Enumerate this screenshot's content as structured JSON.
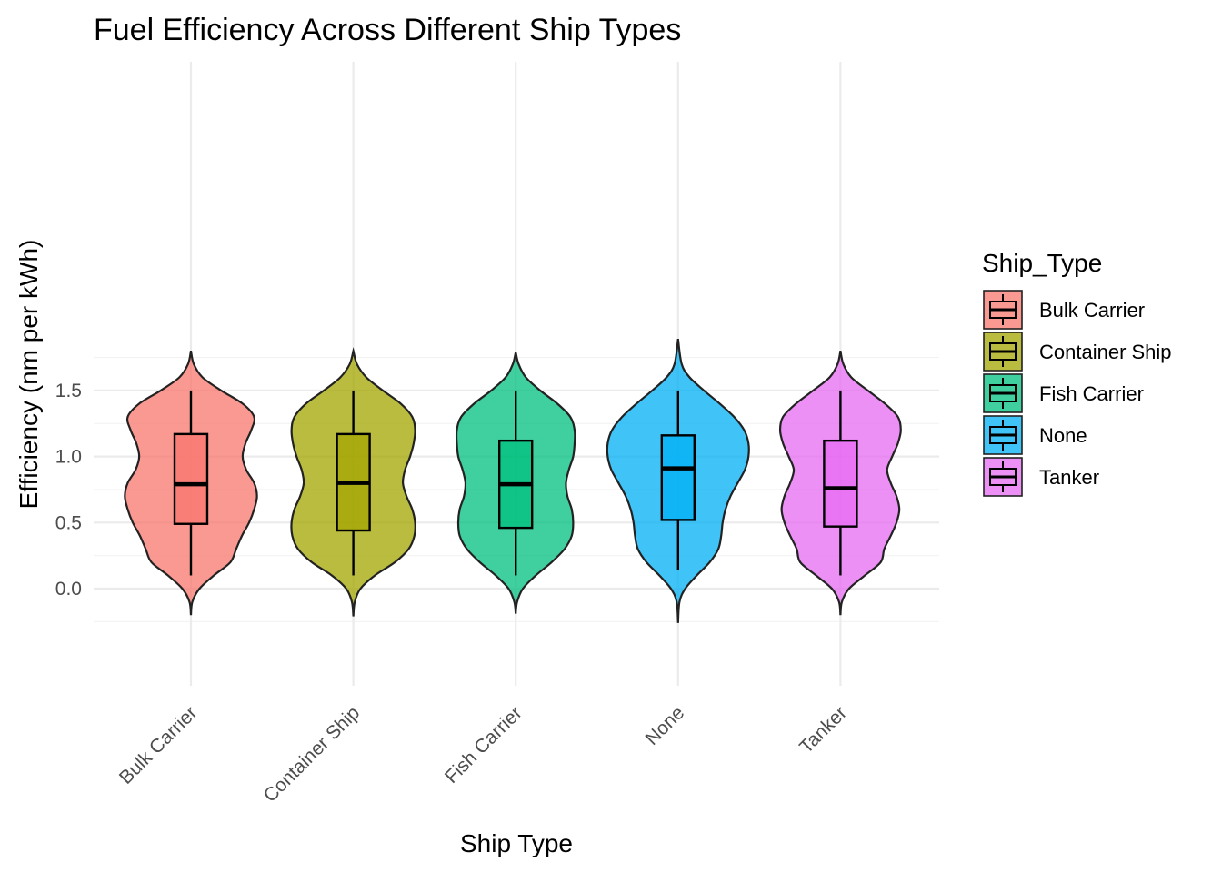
{
  "chart_data": {
    "type": "violin",
    "title": "Fuel Efficiency Across Different Ship Types",
    "xlabel": "Ship Type",
    "ylabel": "Efficiency (nm per kWh)",
    "ylim": [
      -0.25,
      1.9
    ],
    "y_ticks": [
      0.0,
      0.5,
      1.0,
      1.5
    ],
    "y_tick_labels": [
      "0.0",
      "0.5",
      "1.0",
      "1.5"
    ],
    "grid": true,
    "legend": {
      "title": "Ship_Type",
      "placement": "right"
    },
    "categories": [
      "Bulk Carrier",
      "Container Ship",
      "Fish Carrier",
      "None",
      "Tanker"
    ],
    "series": [
      {
        "name": "Bulk Carrier",
        "color": "#F8766D",
        "box": {
          "min": 0.1,
          "q1": 0.49,
          "median": 0.79,
          "q3": 1.17,
          "max": 1.5
        },
        "violin_range": [
          -0.2,
          1.8
        ],
        "density_y": [
          -0.2,
          -0.1,
          0.0,
          0.1,
          0.2,
          0.3,
          0.4,
          0.5,
          0.6,
          0.7,
          0.8,
          0.9,
          1.0,
          1.1,
          1.2,
          1.3,
          1.4,
          1.5,
          1.6,
          1.7,
          1.8
        ],
        "density_w": [
          0.0,
          0.02,
          0.12,
          0.32,
          0.55,
          0.63,
          0.71,
          0.81,
          0.88,
          0.92,
          0.88,
          0.77,
          0.72,
          0.76,
          0.84,
          0.88,
          0.72,
          0.42,
          0.16,
          0.04,
          0.0
        ]
      },
      {
        "name": "Container Ship",
        "color": "#A3A500",
        "box": {
          "min": 0.1,
          "q1": 0.44,
          "median": 0.8,
          "q3": 1.17,
          "max": 1.5
        },
        "violin_range": [
          -0.21,
          1.8
        ],
        "density_y": [
          -0.21,
          -0.1,
          0.0,
          0.1,
          0.2,
          0.3,
          0.4,
          0.5,
          0.6,
          0.7,
          0.8,
          0.9,
          1.0,
          1.1,
          1.2,
          1.3,
          1.4,
          1.5,
          1.6,
          1.7,
          1.8
        ],
        "density_w": [
          0.0,
          0.02,
          0.1,
          0.3,
          0.58,
          0.77,
          0.85,
          0.86,
          0.82,
          0.74,
          0.69,
          0.72,
          0.79,
          0.84,
          0.86,
          0.82,
          0.66,
          0.41,
          0.18,
          0.05,
          0.0
        ]
      },
      {
        "name": "Fish Carrier",
        "color": "#00BF7D",
        "box": {
          "min": 0.1,
          "q1": 0.46,
          "median": 0.79,
          "q3": 1.12,
          "max": 1.5
        },
        "violin_range": [
          -0.19,
          1.79
        ],
        "density_y": [
          -0.19,
          -0.1,
          0.0,
          0.1,
          0.2,
          0.3,
          0.4,
          0.5,
          0.6,
          0.7,
          0.8,
          0.9,
          1.0,
          1.1,
          1.2,
          1.3,
          1.4,
          1.5,
          1.6,
          1.7,
          1.79
        ],
        "density_w": [
          0.0,
          0.02,
          0.1,
          0.28,
          0.5,
          0.68,
          0.78,
          0.8,
          0.78,
          0.72,
          0.7,
          0.74,
          0.8,
          0.82,
          0.82,
          0.76,
          0.58,
          0.34,
          0.14,
          0.04,
          0.0
        ]
      },
      {
        "name": "None",
        "color": "#00B0F6",
        "box": {
          "min": 0.14,
          "q1": 0.52,
          "median": 0.91,
          "q3": 1.16,
          "max": 1.5
        },
        "violin_range": [
          -0.26,
          1.89
        ],
        "density_y": [
          -0.26,
          -0.1,
          0.0,
          0.1,
          0.2,
          0.3,
          0.4,
          0.5,
          0.6,
          0.7,
          0.8,
          0.9,
          1.0,
          1.1,
          1.2,
          1.3,
          1.4,
          1.5,
          1.6,
          1.7,
          1.89
        ],
        "density_w": [
          0.0,
          0.02,
          0.1,
          0.26,
          0.44,
          0.56,
          0.6,
          0.62,
          0.66,
          0.73,
          0.83,
          0.93,
          0.98,
          0.98,
          0.92,
          0.78,
          0.58,
          0.36,
          0.16,
          0.05,
          0.0
        ]
      },
      {
        "name": "Tanker",
        "color": "#E76BF3",
        "box": {
          "min": 0.1,
          "q1": 0.47,
          "median": 0.76,
          "q3": 1.12,
          "max": 1.5
        },
        "violin_range": [
          -0.2,
          1.8
        ],
        "density_y": [
          -0.2,
          -0.1,
          0.0,
          0.1,
          0.2,
          0.3,
          0.4,
          0.5,
          0.6,
          0.7,
          0.8,
          0.9,
          1.0,
          1.1,
          1.2,
          1.3,
          1.4,
          1.5,
          1.6,
          1.7,
          1.8
        ],
        "density_w": [
          0.0,
          0.02,
          0.12,
          0.34,
          0.56,
          0.61,
          0.7,
          0.78,
          0.82,
          0.78,
          0.7,
          0.65,
          0.72,
          0.8,
          0.84,
          0.8,
          0.62,
          0.38,
          0.15,
          0.04,
          0.0
        ]
      }
    ]
  }
}
